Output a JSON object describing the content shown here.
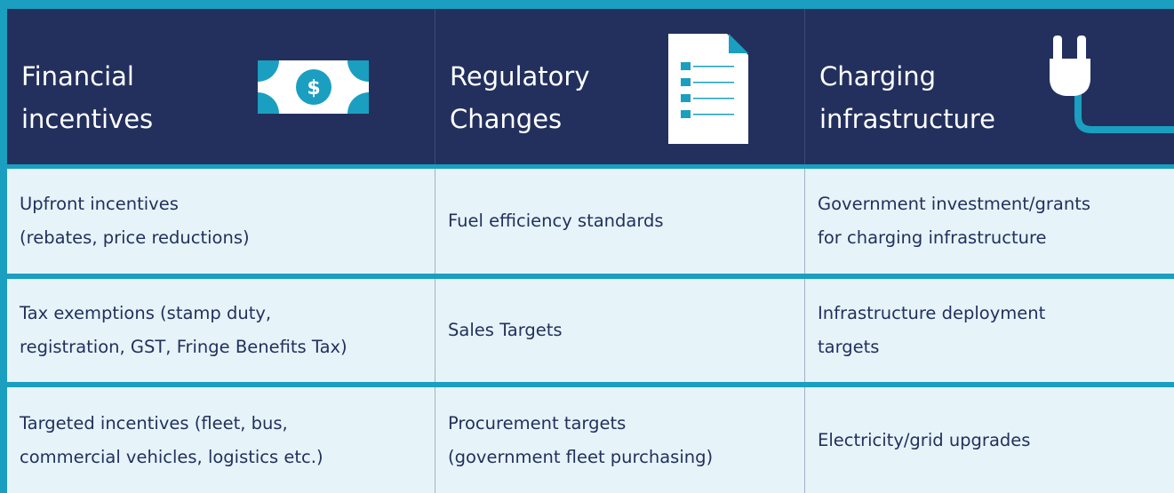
{
  "header": {
    "columns": [
      {
        "title": [
          "Financial",
          "incentives"
        ],
        "icon_text": "$"
      },
      {
        "title": [
          "Regulatory",
          "Changes"
        ]
      },
      {
        "title": [
          "Charging",
          "infrastructure"
        ]
      }
    ]
  },
  "table": {
    "rows": [
      [
        [
          "Upfront incentives",
          "(rebates, price reductions)"
        ],
        [
          "Fuel efficiency standards"
        ],
        [
          "Government investment/grants",
          "for charging infrastructure"
        ]
      ],
      [
        [
          "Tax exemptions (stamp duty,",
          "registration, GST, Fringe Benefits Tax)"
        ],
        [
          "Sales Targets"
        ],
        [
          "Infrastructure deployment",
          "targets"
        ]
      ],
      [
        [
          "Targeted incentives (fleet, bus,",
          "commercial vehicles, logistics etc.)"
        ],
        [
          "Procurement targets",
          "(government fleet purchasing)"
        ],
        [
          "Electricity/grid upgrades"
        ]
      ]
    ]
  }
}
